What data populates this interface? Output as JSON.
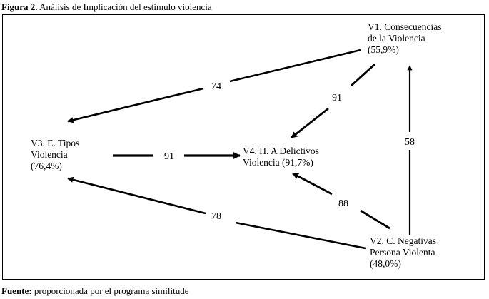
{
  "caption": {
    "prefix": "Figura 2.",
    "text": "Análisis de Implicación  del estímulo violencia"
  },
  "nodes": {
    "v1": {
      "line1": "V1. Consecuencias",
      "line2": "de la Violencia",
      "line3": "(55,9%)"
    },
    "v2": {
      "line1": "V2. C. Negativas",
      "line2": "Persona Violenta",
      "line3": "(48,0%)"
    },
    "v3": {
      "line1": "V3. E.  Tipos",
      "line2": "Violencia",
      "line3": "(76,4%)"
    },
    "v4": {
      "line1": "V4. H. A Delictivos",
      "line2": "Violencia  (91,7%)"
    }
  },
  "edges": {
    "v1_v3": "74",
    "v1_v4": "91",
    "v3_v4": "91",
    "v2_v4": "88",
    "v2_v3": "78",
    "v2_v1": "58"
  },
  "footer": {
    "label": "Fuente:",
    "text": "proporcionada por el programa similitude"
  }
}
